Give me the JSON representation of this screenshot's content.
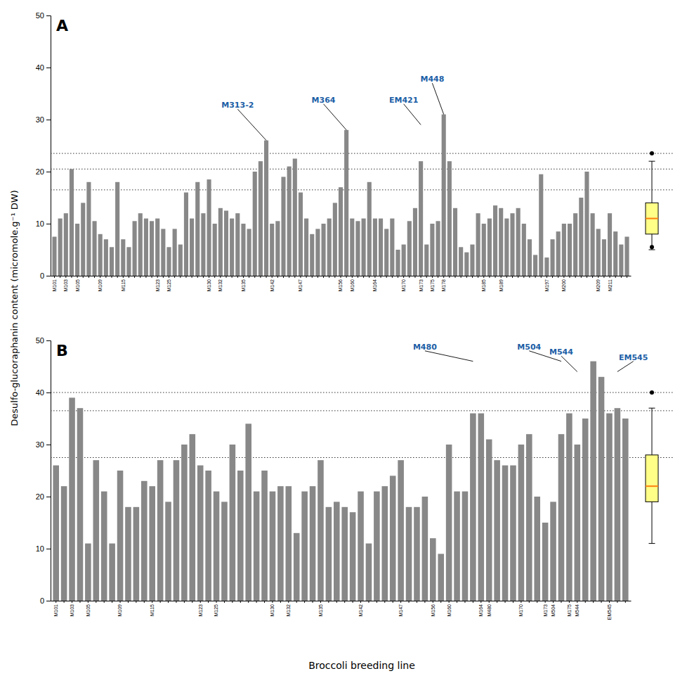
{
  "chart_data": [
    {
      "type": "bar",
      "title": "A",
      "ylabel": "Desulfo-glucoraphanin content (micromole.g⁻¹ DW)",
      "categories": [
        "M101",
        null,
        "M103",
        null,
        "M105",
        null,
        null,
        null,
        "M109",
        null,
        null,
        null,
        "M115",
        null,
        null,
        null,
        null,
        null,
        "M123",
        null,
        "M125",
        null,
        null,
        null,
        null,
        null,
        null,
        "M130",
        null,
        "M132",
        null,
        null,
        null,
        "M135",
        null,
        null,
        null,
        null,
        "M142",
        null,
        null,
        null,
        null,
        "M147",
        null,
        null,
        null,
        null,
        null,
        null,
        "M156",
        null,
        "M160",
        null,
        null,
        null,
        "M164",
        null,
        null,
        null,
        null,
        "M170",
        null,
        null,
        "M173",
        null,
        "M175",
        null,
        "M178",
        null,
        null,
        null,
        null,
        null,
        null,
        "M185",
        null,
        null,
        "M189",
        null,
        null,
        null,
        null,
        null,
        null,
        null,
        "M197",
        null,
        null,
        "M200",
        null,
        null,
        null,
        null,
        null,
        "M209",
        null,
        "M211",
        null,
        null,
        null
      ],
      "values": [
        7.5,
        11,
        12,
        20.5,
        10,
        14,
        18,
        10.5,
        8,
        7,
        5.5,
        18,
        7,
        5.5,
        10.5,
        12,
        11,
        10.5,
        11,
        9,
        5.5,
        9,
        6,
        16,
        11,
        18,
        12,
        18.5,
        10,
        13,
        12.5,
        11,
        12,
        10,
        9,
        20,
        22,
        26,
        10,
        10.5,
        19,
        21,
        22.5,
        16,
        11,
        8,
        9,
        10,
        11,
        14,
        17,
        28,
        11,
        10.5,
        11,
        18,
        11,
        11,
        9,
        11,
        5,
        6,
        10.5,
        13,
        22,
        6,
        10,
        10.5,
        31,
        22,
        13,
        5.5,
        4.5,
        6,
        12,
        10,
        11,
        13.5,
        13,
        11,
        12,
        13,
        10,
        7,
        4,
        19.5,
        3.5,
        7,
        8.5,
        10,
        10,
        12,
        15,
        20,
        12,
        9,
        7,
        12,
        8.5,
        6,
        7.5
      ],
      "color": "#888888",
      "ylim": [
        0,
        50
      ],
      "yticks": [
        0,
        10,
        20,
        30,
        40,
        50
      ],
      "grid": false,
      "reference_lines": [
        16.5,
        20.5,
        23.5
      ],
      "boxplot": {
        "median": 11,
        "q1": 8,
        "q3": 14,
        "whisker_low": 5,
        "whisker_high": 22,
        "outliers": [
          23.5,
          5.5
        ],
        "color": "#FFFF88"
      },
      "annotations": [
        {
          "label": "M313-2",
          "bar_index": 37,
          "value": 26,
          "dx": -5,
          "dy": 6,
          "color": "#1B5EA6"
        },
        {
          "label": "M364",
          "bar_index": 51,
          "value": 28,
          "dx": -4,
          "dy": 5,
          "color": "#1B5EA6"
        },
        {
          "label": "EM421",
          "bar_index": 64,
          "value": 29,
          "dx": -3,
          "dy": 4,
          "color": "#1B5EA6"
        },
        {
          "label": "M448",
          "bar_index": 68,
          "value": 31,
          "dx": -2,
          "dy": 6,
          "color": "#1B5EA6"
        }
      ]
    },
    {
      "type": "bar",
      "title": "B",
      "xlabel": "Broccoli breeding line",
      "categories": [
        "M101",
        null,
        "M103",
        null,
        "M105",
        null,
        null,
        null,
        "M109",
        null,
        null,
        null,
        "M115",
        null,
        null,
        null,
        null,
        null,
        "M123",
        null,
        "M125",
        null,
        null,
        null,
        null,
        null,
        null,
        "M130",
        null,
        "M132",
        null,
        null,
        null,
        "M135",
        null,
        null,
        null,
        null,
        "M142",
        null,
        null,
        null,
        null,
        "M147",
        null,
        null,
        null,
        "M156",
        null,
        "M160",
        null,
        null,
        null,
        "M164",
        "M480",
        null,
        null,
        null,
        "M170",
        null,
        null,
        "M173",
        "M504",
        null,
        "M175",
        "M544",
        null,
        null,
        null,
        "EM545",
        null,
        null
      ],
      "values": [
        26,
        22,
        39,
        37,
        11,
        27,
        21,
        11,
        25,
        18,
        18,
        23,
        22,
        27,
        19,
        27,
        30,
        32,
        26,
        25,
        21,
        19,
        30,
        25,
        34,
        21,
        25,
        21,
        22,
        22,
        13,
        21,
        22,
        27,
        18,
        19,
        18,
        17,
        21,
        11,
        21,
        22,
        24,
        27,
        18,
        18,
        20,
        12,
        9,
        30,
        21,
        21,
        36,
        36,
        31,
        27,
        26,
        26,
        30,
        32,
        20,
        15,
        19,
        32,
        36,
        30,
        35,
        46,
        43,
        36,
        37,
        35
      ],
      "color": "#888888",
      "ylim": [
        0,
        50
      ],
      "yticks": [
        0,
        10,
        20,
        30,
        40,
        50
      ],
      "grid": false,
      "reference_lines": [
        27.5,
        36.5,
        40.0
      ],
      "boxplot": {
        "median": 22,
        "q1": 19,
        "q3": 28,
        "whisker_low": 11,
        "whisker_high": 37,
        "outliers": [
          40
        ],
        "color": "#FFFF88"
      },
      "annotations": [
        {
          "label": "M480",
          "bar_index": 52,
          "value": 46,
          "dx": -6,
          "dy": 2,
          "color": "#1B5EA6"
        },
        {
          "label": "M504",
          "bar_index": 63,
          "value": 46,
          "dx": -4,
          "dy": 2,
          "color": "#1B5EA6"
        },
        {
          "label": "M544",
          "bar_index": 65,
          "value": 44,
          "dx": -2,
          "dy": 3,
          "color": "#1B5EA6"
        },
        {
          "label": "EM545",
          "bar_index": 70,
          "value": 44,
          "dx": 2,
          "dy": 2,
          "color": "#1B5EA6"
        }
      ]
    }
  ]
}
